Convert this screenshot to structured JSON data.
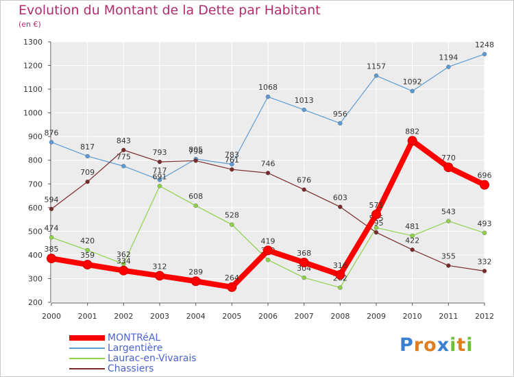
{
  "header": {
    "title": "Evolution du Montant de la Dette par Habitant",
    "unit": "(en €)"
  },
  "logo": {
    "text": "Proxiti",
    "letters": [
      {
        "ch": "P",
        "color": "#3a7fd0"
      },
      {
        "ch": "r",
        "color": "#e07d1e"
      },
      {
        "ch": "o",
        "color": "#e07d1e"
      },
      {
        "ch": "x",
        "color": "#3a7fd0"
      },
      {
        "ch": "i",
        "color": "#6fbf3a"
      },
      {
        "ch": "t",
        "color": "#e07d1e"
      },
      {
        "ch": "i",
        "color": "#6fbf3a"
      }
    ]
  },
  "chart_data": {
    "type": "line",
    "title": "Evolution du Montant de la Dette par Habitant",
    "ylabel": "(en €)",
    "xlabel": "",
    "x": [
      "2000",
      "2001",
      "2002",
      "2003",
      "2004",
      "2005",
      "2006",
      "2007",
      "2008",
      "2009",
      "2010",
      "2011",
      "2012"
    ],
    "ylim": [
      200,
      1300
    ],
    "yticks": [
      200,
      300,
      400,
      500,
      600,
      700,
      800,
      900,
      1000,
      1100,
      1200,
      1300
    ],
    "grid": true,
    "legend": "bottom-left",
    "series": [
      {
        "name": "MONTRéAL",
        "color": "#ff0000",
        "thick": true,
        "values": [
          385,
          359,
          334,
          312,
          289,
          264,
          419,
          368,
          316,
          571,
          882,
          770,
          696
        ]
      },
      {
        "name": "Largentière",
        "color": "#5b9bd5",
        "thick": false,
        "values": [
          876,
          817,
          775,
          717,
          805,
          783,
          1068,
          1013,
          956,
          1157,
          1092,
          1194,
          1248
        ]
      },
      {
        "name": "Laurac-en-Vivarais",
        "color": "#8fd24a",
        "thick": false,
        "values": [
          474,
          420,
          362,
          691,
          608,
          528,
          379,
          304,
          262,
          515,
          481,
          543,
          493
        ]
      },
      {
        "name": "Chassiers",
        "color": "#7a2a2a",
        "thick": false,
        "values": [
          594,
          709,
          843,
          793,
          798,
          761,
          746,
          676,
          603,
          495,
          422,
          355,
          332
        ]
      }
    ]
  }
}
